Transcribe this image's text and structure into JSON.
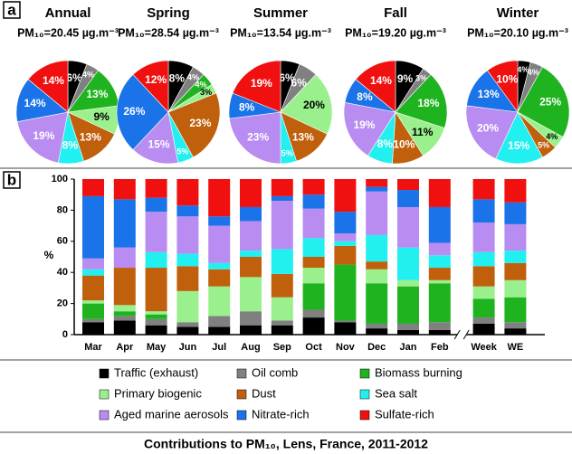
{
  "panel_labels": [
    "a",
    "b"
  ],
  "caption": "Contributions to PM₁₀, Lens, France, 2011-2012",
  "chart_data": [
    {
      "type": "pie",
      "title": "Annual",
      "subtitle": "PM₁₀=20.45 µg.m⁻³",
      "values": [
        6,
        4,
        13,
        9,
        13,
        8,
        19,
        14,
        14
      ],
      "value_labels": [
        "6%",
        "4%",
        "13%",
        "9%",
        "13%",
        "8%",
        "19%",
        "14%",
        "14%"
      ]
    },
    {
      "type": "pie",
      "title": "Spring",
      "subtitle": "PM₁₀=28.54 µg.m⁻³",
      "values": [
        8,
        4,
        4,
        3,
        23,
        5,
        15,
        26,
        12
      ],
      "value_labels": [
        "8%",
        "4%",
        "4%",
        "3%",
        "23%",
        "5%",
        "15%",
        "26%",
        "12%"
      ]
    },
    {
      "type": "pie",
      "title": "Summer",
      "subtitle": "PM₁₀=13.54 µg.m⁻³",
      "values": [
        6,
        6,
        0,
        20,
        13,
        5,
        23,
        8,
        19
      ],
      "value_labels": [
        "6%",
        "6%",
        null,
        "20%",
        "13%",
        "5%",
        "23%",
        "8%",
        "19%"
      ]
    },
    {
      "type": "pie",
      "title": "Fall",
      "subtitle": "PM₁₀=19.20 µg.m⁻³",
      "values": [
        9,
        3,
        18,
        11,
        10,
        8,
        19,
        8,
        14
      ],
      "value_labels": [
        "9%",
        "3%",
        "18%",
        "11%",
        "10%",
        "8%",
        "19%",
        "8%",
        "14%"
      ]
    },
    {
      "type": "pie",
      "title": "Winter",
      "subtitle": "PM₁₀=20.10 µg.m⁻³",
      "values": [
        4,
        4,
        25,
        4,
        5,
        15,
        20,
        13,
        10
      ],
      "value_labels": [
        "4%",
        "4%",
        "25%",
        "4%",
        "5%",
        "15%",
        "20%",
        "13%",
        "10%"
      ]
    },
    {
      "type": "bar",
      "stacked": true,
      "ylabel": "%",
      "categories": [
        "Mar",
        "Apr",
        "May",
        "Jun",
        "Jul",
        "Aug",
        "Sep",
        "Oct",
        "Nov",
        "Dec",
        "Jan",
        "Feb",
        "Week",
        "WE"
      ],
      "ylim": [
        0,
        100
      ],
      "yticks": [
        0,
        20,
        40,
        60,
        80,
        100
      ],
      "series": [
        {
          "name": "Traffic (exhaust)",
          "color": "#000000",
          "values": [
            8,
            9,
            6,
            5,
            5,
            6,
            6,
            11,
            8,
            4,
            3,
            3,
            7,
            4
          ]
        },
        {
          "name": "Oil comb",
          "color": "#808080",
          "values": [
            2,
            3,
            4,
            3,
            7,
            9,
            3,
            5,
            1,
            3,
            4,
            5,
            4,
            4
          ]
        },
        {
          "name": "Biomass burning",
          "color": "#1fb41f",
          "values": [
            10,
            3,
            3,
            0,
            0,
            0,
            0,
            17,
            36,
            26,
            24,
            25,
            12,
            16
          ]
        },
        {
          "name": "Primary biogenic",
          "color": "#99f08c",
          "values": [
            2,
            4,
            2,
            20,
            19,
            22,
            15,
            10,
            0,
            9,
            4,
            2,
            8,
            11
          ]
        },
        {
          "name": "Dust",
          "color": "#c0600c",
          "values": [
            16,
            24,
            28,
            16,
            11,
            13,
            15,
            7,
            12,
            5,
            0,
            8,
            13,
            11
          ]
        },
        {
          "name": "Sea salt",
          "color": "#22f0f0",
          "values": [
            4,
            0,
            10,
            8,
            4,
            4,
            16,
            12,
            3,
            17,
            21,
            8,
            9,
            8
          ]
        },
        {
          "name": "Aged marine aerosols",
          "color": "#b88cf0",
          "values": [
            7,
            13,
            26,
            24,
            24,
            19,
            31,
            19,
            5,
            28,
            26,
            8,
            19,
            17
          ]
        },
        {
          "name": "Nitrate-rich",
          "color": "#1a73e8",
          "values": [
            40,
            31,
            9,
            7,
            6,
            9,
            3,
            9,
            14,
            3,
            11,
            23,
            15,
            14
          ]
        },
        {
          "name": "Sulfate-rich",
          "color": "#f01010",
          "values": [
            11,
            13,
            12,
            17,
            24,
            18,
            11,
            10,
            21,
            5,
            7,
            18,
            13,
            15
          ]
        }
      ]
    }
  ]
}
